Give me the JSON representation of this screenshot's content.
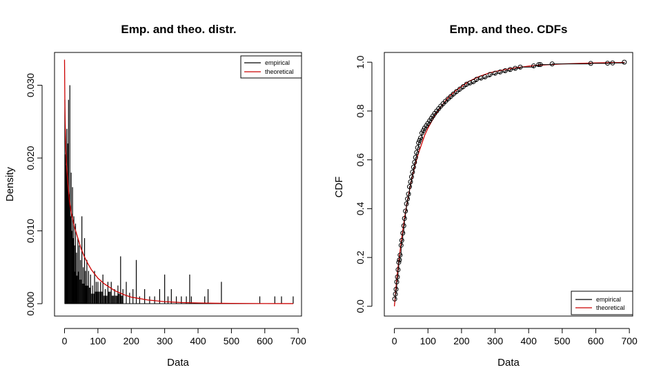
{
  "chart_data": [
    {
      "type": "bar",
      "title": "Emp. and theo. distr.",
      "xlabel": "Data",
      "ylabel": "Density",
      "xlim": [
        -30,
        710
      ],
      "ylim": [
        -0.0017,
        0.0345
      ],
      "xticks": [
        0,
        100,
        200,
        300,
        400,
        500,
        600,
        700
      ],
      "xtick_labels": [
        "0",
        "100",
        "200",
        "300",
        "400",
        "500",
        "600",
        "700"
      ],
      "yticks": [
        0.0,
        0.01,
        0.02,
        0.03
      ],
      "ytick_labels": [
        "0.000",
        "0.010",
        "0.020",
        "0.030"
      ],
      "legend": {
        "position": "top-right",
        "entries": [
          {
            "label": "empirical",
            "color": "#000000"
          },
          {
            "label": "theoretical",
            "color": "#cc0000"
          }
        ]
      },
      "series": [
        {
          "name": "empirical",
          "color": "#000000",
          "x": [
            1,
            3,
            5,
            7,
            8,
            10,
            12,
            14,
            16,
            18,
            20,
            22,
            24,
            26,
            28,
            30,
            33,
            36,
            40,
            44,
            48,
            52,
            56,
            60,
            63,
            67,
            72,
            78,
            84,
            90,
            95,
            100,
            108,
            115,
            122,
            130,
            140,
            150,
            160,
            168,
            175,
            185,
            195,
            205,
            215,
            225,
            240,
            255,
            270,
            285,
            300,
            310,
            320,
            335,
            350,
            365,
            375,
            380,
            420,
            430,
            470,
            585,
            630,
            650,
            685
          ],
          "values": [
            0.028,
            0.0205,
            0.019,
            0.024,
            0.017,
            0.022,
            0.028,
            0.015,
            0.03,
            0.012,
            0.018,
            0.01,
            0.016,
            0.009,
            0.012,
            0.008,
            0.011,
            0.007,
            0.009,
            0.008,
            0.006,
            0.012,
            0.005,
            0.009,
            0.0045,
            0.006,
            0.0045,
            0.004,
            0.0025,
            0.0045,
            0.003,
            0.003,
            0.003,
            0.004,
            0.002,
            0.003,
            0.003,
            0.002,
            0.0025,
            0.0065,
            0.002,
            0.003,
            0.0015,
            0.002,
            0.006,
            0.001,
            0.002,
            0.001,
            0.001,
            0.002,
            0.004,
            0.001,
            0.002,
            0.001,
            0.001,
            0.001,
            0.004,
            0.001,
            0.001,
            0.002,
            0.003,
            0.001,
            0.001,
            0.001,
            0.001
          ]
        },
        {
          "name": "theoretical",
          "color": "#cc0000",
          "type": "line",
          "x": [
            0,
            1,
            2,
            4,
            6,
            10,
            15,
            20,
            30,
            40,
            50,
            60,
            70,
            80,
            100,
            120,
            150,
            180,
            200,
            250,
            300,
            350,
            400,
            450,
            500,
            600,
            685
          ],
          "values": [
            0.0335,
            0.028,
            0.025,
            0.021,
            0.019,
            0.0165,
            0.014,
            0.0125,
            0.0105,
            0.009,
            0.0075,
            0.0064,
            0.0055,
            0.0047,
            0.0035,
            0.0027,
            0.0018,
            0.0012,
            0.0009,
            0.0005,
            0.00028,
            0.00016,
            0.0001,
            6e-05,
            4e-05,
            2e-05,
            1e-05
          ]
        }
      ]
    },
    {
      "type": "line",
      "title": "Emp. and theo. CDFs",
      "xlabel": "Data",
      "ylabel": "CDF",
      "xlim": [
        -30,
        710
      ],
      "ylim": [
        -0.04,
        1.04
      ],
      "xticks": [
        0,
        100,
        200,
        300,
        400,
        500,
        600,
        700
      ],
      "xtick_labels": [
        "0",
        "100",
        "200",
        "300",
        "400",
        "500",
        "600",
        "700"
      ],
      "yticks": [
        0.0,
        0.2,
        0.4,
        0.6,
        0.8,
        1.0
      ],
      "ytick_labels": [
        "0.0",
        "0.2",
        "0.4",
        "0.6",
        "0.8",
        "1.0"
      ],
      "legend": {
        "position": "bottom-right",
        "entries": [
          {
            "label": "empirical",
            "color": "#000000"
          },
          {
            "label": "theoretical",
            "color": "#cc0000"
          }
        ]
      },
      "series": [
        {
          "name": "empirical",
          "color": "#000000",
          "marker": "circle",
          "x": [
            1,
            3,
            5,
            7,
            9,
            11,
            13,
            15,
            17,
            20,
            22,
            25,
            28,
            30,
            33,
            36,
            39,
            42,
            45,
            48,
            51,
            54,
            57,
            60,
            63,
            66,
            69,
            72,
            75,
            78,
            82,
            86,
            90,
            95,
            100,
            105,
            110,
            115,
            120,
            126,
            132,
            138,
            145,
            152,
            160,
            168,
            176,
            185,
            195,
            205,
            215,
            225,
            235,
            245,
            258,
            270,
            285,
            300,
            315,
            330,
            345,
            360,
            375,
            415,
            430,
            435,
            470,
            585,
            635,
            650,
            685
          ],
          "values": [
            0.03,
            0.05,
            0.07,
            0.1,
            0.12,
            0.15,
            0.18,
            0.19,
            0.21,
            0.25,
            0.27,
            0.3,
            0.33,
            0.36,
            0.39,
            0.42,
            0.44,
            0.46,
            0.49,
            0.51,
            0.53,
            0.55,
            0.57,
            0.59,
            0.61,
            0.63,
            0.65,
            0.67,
            0.68,
            0.69,
            0.71,
            0.72,
            0.73,
            0.74,
            0.75,
            0.76,
            0.77,
            0.78,
            0.79,
            0.8,
            0.81,
            0.82,
            0.83,
            0.84,
            0.85,
            0.86,
            0.87,
            0.88,
            0.89,
            0.9,
            0.91,
            0.915,
            0.92,
            0.93,
            0.935,
            0.94,
            0.95,
            0.955,
            0.96,
            0.965,
            0.97,
            0.975,
            0.98,
            0.985,
            0.99,
            0.99,
            0.993,
            0.995,
            0.996,
            0.997,
            1.0
          ]
        },
        {
          "name": "theoretical",
          "color": "#cc0000",
          "x": [
            0,
            5,
            10,
            20,
            30,
            40,
            50,
            60,
            70,
            80,
            90,
            100,
            120,
            140,
            160,
            180,
            200,
            220,
            250,
            280,
            300,
            350,
            400,
            450,
            500,
            600,
            685
          ],
          "values": [
            0.0,
            0.08,
            0.15,
            0.26,
            0.36,
            0.44,
            0.51,
            0.57,
            0.62,
            0.66,
            0.7,
            0.73,
            0.78,
            0.82,
            0.855,
            0.88,
            0.9,
            0.92,
            0.94,
            0.955,
            0.962,
            0.975,
            0.984,
            0.989,
            0.993,
            0.997,
            0.999
          ]
        }
      ]
    }
  ]
}
